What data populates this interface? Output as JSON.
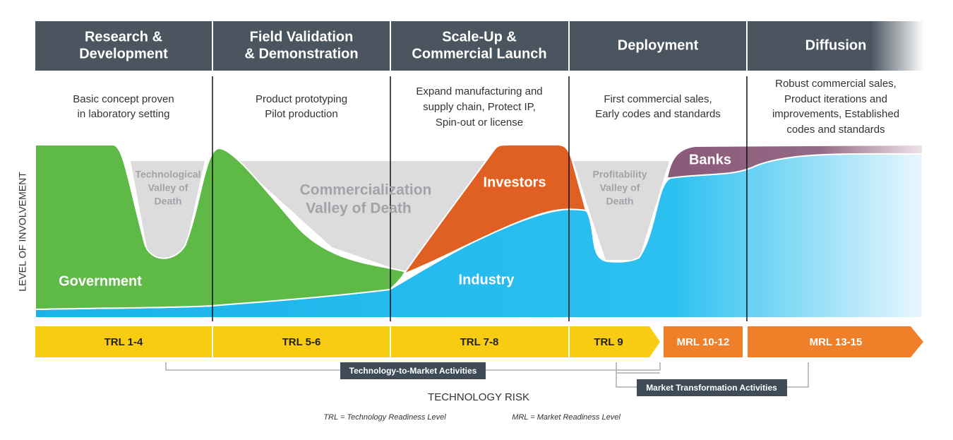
{
  "stages": [
    {
      "title": [
        "Research &",
        "Development"
      ],
      "description": [
        "Basic concept proven",
        "in laboratory setting"
      ]
    },
    {
      "title": [
        "Field Validation",
        "& Demonstration"
      ],
      "description": [
        "Product prototyping",
        "Pilot production"
      ]
    },
    {
      "title": [
        "Scale-Up &",
        "Commercial Launch"
      ],
      "description": [
        "Expand manufacturing and",
        "supply chain, Protect IP,",
        "Spin-out or license"
      ]
    },
    {
      "title": [
        "Deployment"
      ],
      "description": [
        "First commercial sales,",
        "Early codes and standards"
      ]
    },
    {
      "title": [
        "Diffusion"
      ],
      "description": [
        "Robust commercial sales,",
        "Product iterations and",
        "improvements, Established",
        "codes and standards"
      ]
    }
  ],
  "valleys": [
    {
      "label": [
        "Technological",
        "Valley of",
        "Death"
      ]
    },
    {
      "label": [
        "Commercialization",
        "Valley of Death"
      ]
    },
    {
      "label": [
        "Profitability",
        "Valley of",
        "Death"
      ]
    }
  ],
  "actors": [
    "Government",
    "Industry",
    "Investors",
    "Banks"
  ],
  "readiness_levels": [
    "TRL 1-4",
    "TRL 5-6",
    "TRL 7-8",
    "TRL 9",
    "MRL 10-12",
    "MRL 13-15"
  ],
  "activities": [
    "Technology-to-Market Activities",
    "Market Transformation Activities"
  ],
  "y_axis_label": "LEVEL OF INVOLVEMENT",
  "x_axis_label": "TECHNOLOGY RISK",
  "footnote": [
    "TRL = Technology Readiness Level",
    "MRL = Market Readiness Level"
  ]
}
